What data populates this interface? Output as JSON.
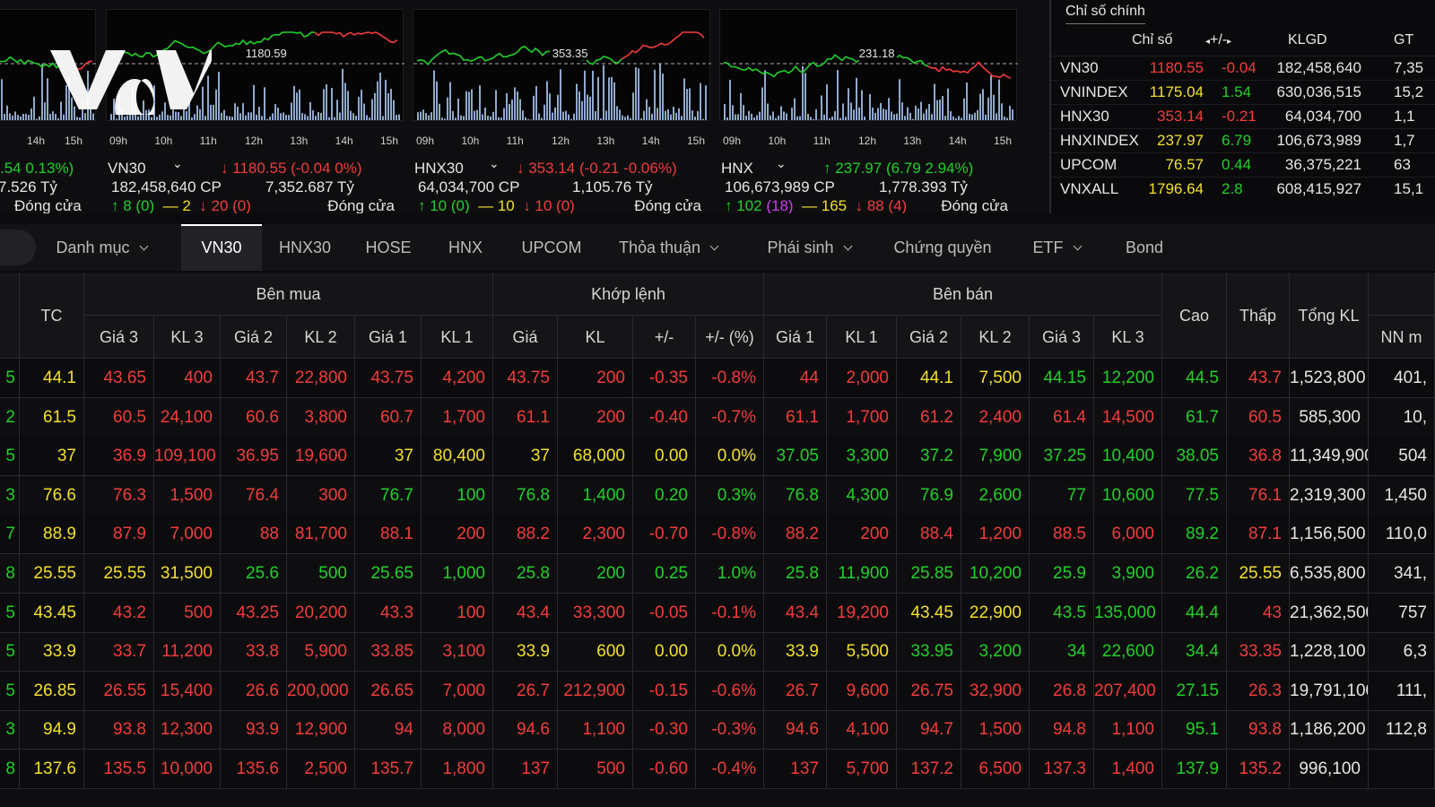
{
  "logo_text": "VOV",
  "colors": {
    "up": "#22d02a",
    "down": "#f23c3c",
    "ref": "#f2e02a",
    "ceil": "#d23cf2",
    "bg": "#0b0b0d"
  },
  "charts": [
    {
      "name": "",
      "level_label": "",
      "times": [
        "h",
        "14h",
        "15h"
      ],
      "change": ".54 0.13%)",
      "line2_left": "7.526 Tỷ",
      "line3_up": "↑ 8 (0)",
      "line3_flat": "— 2",
      "line3_down": "↓ 20 (0)",
      "line3_status": "Đóng cửa"
    },
    {
      "name": "VN30",
      "level_label": "1180.59",
      "times": [
        "09h",
        "10h",
        "11h",
        "12h",
        "13h",
        "14h",
        "15h"
      ],
      "change": "↓ 1180.55 (-0.04 0%)",
      "line2_left": "182,458,640 CP",
      "line2_right": "7,352.687 Tỷ",
      "line3_up": "↑ 8 (0)",
      "line3_flat": "— 2",
      "line3_down": "↓ 20 (0)",
      "line3_status": "Đóng cửa"
    },
    {
      "name": "HNX30",
      "level_label": "353.35",
      "times": [
        "09h",
        "10h",
        "11h",
        "12h",
        "13h",
        "14h",
        "15h"
      ],
      "change": "↓ 353.14 (-0.21 -0.06%)",
      "line2_left": "64,034,700 CP",
      "line2_right": "1,105.76 Tỷ",
      "line3_up": "↑ 10 (0)",
      "line3_flat": "— 10",
      "line3_down": "↓ 10 (0)",
      "line3_status": "Đóng cửa"
    },
    {
      "name": "HNX",
      "level_label": "231.18",
      "times": [
        "09h",
        "10h",
        "11h",
        "12h",
        "13h",
        "14h",
        "15h"
      ],
      "change": "↑ 237.97 (6.79 2.94%)",
      "line2_left": "106,673,989 CP",
      "line2_right": "1,778.393 Tỷ",
      "line3_up": "↑ 102",
      "line3_up_ceil": "(18)",
      "line3_flat": "— 165",
      "line3_down": "↓ 88 (4)",
      "line3_status": "Đóng cửa"
    }
  ],
  "index_table": {
    "tab": "Chỉ số chính",
    "headers": [
      "Chỉ số",
      "+/-",
      "KLGD",
      "GT"
    ],
    "rows": [
      {
        "name": "VN30",
        "value": "1180.55",
        "change": "-0.04",
        "vol": "182,458,640",
        "gt": "7,35",
        "dir": "down"
      },
      {
        "name": "VNINDEX",
        "value": "1175.04",
        "change": "1.54",
        "vol": "630,036,515",
        "gt": "15,2",
        "dir": "up"
      },
      {
        "name": "HNX30",
        "value": "353.14",
        "change": "-0.21",
        "vol": "64,034,700",
        "gt": "1,1",
        "dir": "down"
      },
      {
        "name": "HNXINDEX",
        "value": "237.97",
        "change": "6.79",
        "vol": "106,673,989",
        "gt": "1,7",
        "dir": "up"
      },
      {
        "name": "UPCOM",
        "value": "76.57",
        "change": "0.44",
        "vol": "36,375,221",
        "gt": "63",
        "dir": "up"
      },
      {
        "name": "VNXALL",
        "value": "1796.64",
        "change": "2.8",
        "vol": "608,415,927",
        "gt": "15,1",
        "dir": "up"
      }
    ]
  },
  "tabs": [
    {
      "label": "Danh mục",
      "dropdown": true
    },
    {
      "label": "VN30",
      "active": true
    },
    {
      "label": "HNX30"
    },
    {
      "label": "HOSE"
    },
    {
      "label": "HNX"
    },
    {
      "label": "UPCOM"
    },
    {
      "label": "Thỏa thuận",
      "dropdown": true
    },
    {
      "label": "Phái sinh",
      "dropdown": true
    },
    {
      "label": "Chứng quyền"
    },
    {
      "label": "ETF",
      "dropdown": true
    },
    {
      "label": "Bond"
    }
  ],
  "board": {
    "groups": {
      "buy": "Bên mua",
      "match": "Khớp lệnh",
      "sell": "Bên bán"
    },
    "headers": {
      "tc": "TC",
      "buy": [
        "Giá 3",
        "KL 3",
        "Giá 2",
        "KL 2",
        "Giá 1",
        "KL 1"
      ],
      "match": [
        "Giá",
        "KL",
        "+/-",
        "+/- (%)"
      ],
      "sell": [
        "Giá 1",
        "KL 1",
        "Giá 2",
        "KL 2",
        "Giá 3",
        "KL 3"
      ],
      "cao": "Cao",
      "thap": "Thấp",
      "tongkl": "Tổng KL",
      "nn": "NN m"
    },
    "rows": [
      {
        "c0": "5",
        "tc": "44.1",
        "cells": [
          "43.65",
          "400",
          "43.7",
          "22,800",
          "43.75",
          "4,200",
          "43.75",
          "200",
          "-0.35",
          "-0.8%",
          "44",
          "2,000",
          "44.1",
          "7,500",
          "44.15",
          "12,200",
          "44.5",
          "43.7",
          "1,523,800",
          "401,"
        ],
        "colors": [
          "r",
          "r",
          "r",
          "r",
          "r",
          "r",
          "r",
          "r",
          "r",
          "r",
          "r",
          "r",
          "y",
          "y",
          "g",
          "g",
          "g",
          "r",
          "w",
          "w"
        ]
      },
      {
        "c0": "2",
        "tc": "61.5",
        "cells": [
          "60.5",
          "24,100",
          "60.6",
          "3,800",
          "60.7",
          "1,700",
          "61.1",
          "200",
          "-0.40",
          "-0.7%",
          "61.1",
          "1,700",
          "61.2",
          "2,400",
          "61.4",
          "14,500",
          "61.7",
          "60.5",
          "585,300",
          "10,"
        ],
        "colors": [
          "r",
          "r",
          "r",
          "r",
          "r",
          "r",
          "r",
          "r",
          "r",
          "r",
          "r",
          "r",
          "r",
          "r",
          "r",
          "r",
          "g",
          "r",
          "w",
          "w"
        ]
      },
      {
        "c0": "5",
        "tc": "37",
        "cells": [
          "36.9",
          "109,100",
          "36.95",
          "19,600",
          "37",
          "80,400",
          "37",
          "68,000",
          "0.00",
          "0.0%",
          "37.05",
          "3,300",
          "37.2",
          "7,900",
          "37.25",
          "10,400",
          "38.05",
          "36.8",
          "11,349,900",
          "504"
        ],
        "colors": [
          "r",
          "r",
          "r",
          "r",
          "y",
          "y",
          "y",
          "y",
          "y",
          "y",
          "g",
          "g",
          "g",
          "g",
          "g",
          "g",
          "g",
          "r",
          "w",
          "w"
        ]
      },
      {
        "c0": "3",
        "tc": "76.6",
        "cells": [
          "76.3",
          "1,500",
          "76.4",
          "300",
          "76.7",
          "100",
          "76.8",
          "1,400",
          "0.20",
          "0.3%",
          "76.8",
          "4,300",
          "76.9",
          "2,600",
          "77",
          "10,600",
          "77.5",
          "76.1",
          "2,319,300",
          "1,450"
        ],
        "colors": [
          "r",
          "r",
          "r",
          "r",
          "g",
          "g",
          "g",
          "g",
          "g",
          "g",
          "g",
          "g",
          "g",
          "g",
          "g",
          "g",
          "g",
          "r",
          "w",
          "w"
        ]
      },
      {
        "c0": "7",
        "tc": "88.9",
        "cells": [
          "87.9",
          "7,000",
          "88",
          "81,700",
          "88.1",
          "200",
          "88.2",
          "2,300",
          "-0.70",
          "-0.8%",
          "88.2",
          "200",
          "88.4",
          "1,200",
          "88.5",
          "6,000",
          "89.2",
          "87.1",
          "1,156,500",
          "110,0"
        ],
        "colors": [
          "r",
          "r",
          "r",
          "r",
          "r",
          "r",
          "r",
          "r",
          "r",
          "r",
          "r",
          "r",
          "r",
          "r",
          "r",
          "r",
          "g",
          "r",
          "w",
          "w"
        ]
      },
      {
        "c0": "8",
        "tc": "25.55",
        "cells": [
          "25.55",
          "31,500",
          "25.6",
          "500",
          "25.65",
          "1,000",
          "25.8",
          "200",
          "0.25",
          "1.0%",
          "25.8",
          "11,900",
          "25.85",
          "10,200",
          "25.9",
          "3,900",
          "26.2",
          "25.55",
          "6,535,800",
          "341,"
        ],
        "colors": [
          "y",
          "y",
          "g",
          "g",
          "g",
          "g",
          "g",
          "g",
          "g",
          "g",
          "g",
          "g",
          "g",
          "g",
          "g",
          "g",
          "g",
          "y",
          "w",
          "w"
        ]
      },
      {
        "c0": "5",
        "tc": "43.45",
        "cells": [
          "43.2",
          "500",
          "43.25",
          "20,200",
          "43.3",
          "100",
          "43.4",
          "33,300",
          "-0.05",
          "-0.1%",
          "43.4",
          "19,200",
          "43.45",
          "22,900",
          "43.5",
          "135,000",
          "44.4",
          "43",
          "21,362,500",
          "757"
        ],
        "colors": [
          "r",
          "r",
          "r",
          "r",
          "r",
          "r",
          "r",
          "r",
          "r",
          "r",
          "r",
          "r",
          "y",
          "y",
          "g",
          "g",
          "g",
          "r",
          "w",
          "w"
        ]
      },
      {
        "c0": "5",
        "tc": "33.9",
        "cells": [
          "33.7",
          "11,200",
          "33.8",
          "5,900",
          "33.85",
          "3,100",
          "33.9",
          "600",
          "0.00",
          "0.0%",
          "33.9",
          "5,500",
          "33.95",
          "3,200",
          "34",
          "22,600",
          "34.4",
          "33.35",
          "1,228,100",
          "6,3"
        ],
        "colors": [
          "r",
          "r",
          "r",
          "r",
          "r",
          "r",
          "y",
          "y",
          "y",
          "y",
          "y",
          "y",
          "g",
          "g",
          "g",
          "g",
          "g",
          "r",
          "w",
          "w"
        ]
      },
      {
        "c0": "5",
        "tc": "26.85",
        "cells": [
          "26.55",
          "15,400",
          "26.6",
          "200,000",
          "26.65",
          "7,000",
          "26.7",
          "212,900",
          "-0.15",
          "-0.6%",
          "26.7",
          "9,600",
          "26.75",
          "32,900",
          "26.8",
          "207,400",
          "27.15",
          "26.3",
          "19,791,100",
          "111,"
        ],
        "colors": [
          "r",
          "r",
          "r",
          "r",
          "r",
          "r",
          "r",
          "r",
          "r",
          "r",
          "r",
          "r",
          "r",
          "r",
          "r",
          "r",
          "g",
          "r",
          "w",
          "w"
        ]
      },
      {
        "c0": "3",
        "tc": "94.9",
        "cells": [
          "93.8",
          "12,300",
          "93.9",
          "12,900",
          "94",
          "8,000",
          "94.6",
          "1,100",
          "-0.30",
          "-0.3%",
          "94.6",
          "4,100",
          "94.7",
          "1,500",
          "94.8",
          "1,100",
          "95.1",
          "93.8",
          "1,186,200",
          "112,8"
        ],
        "colors": [
          "r",
          "r",
          "r",
          "r",
          "r",
          "r",
          "r",
          "r",
          "r",
          "r",
          "r",
          "r",
          "r",
          "r",
          "r",
          "r",
          "g",
          "r",
          "w",
          "w"
        ]
      },
      {
        "c0": "8",
        "tc": "137.6",
        "cells": [
          "135.5",
          "10,000",
          "135.6",
          "2,500",
          "135.7",
          "1,800",
          "137",
          "500",
          "-0.60",
          "-0.4%",
          "137",
          "5,700",
          "137.2",
          "6,500",
          "137.3",
          "1,400",
          "137.9",
          "135.2",
          "996,100",
          ""
        ],
        "colors": [
          "r",
          "r",
          "r",
          "r",
          "r",
          "r",
          "r",
          "r",
          "r",
          "r",
          "r",
          "r",
          "r",
          "r",
          "r",
          "r",
          "g",
          "r",
          "w",
          "w"
        ]
      }
    ]
  }
}
